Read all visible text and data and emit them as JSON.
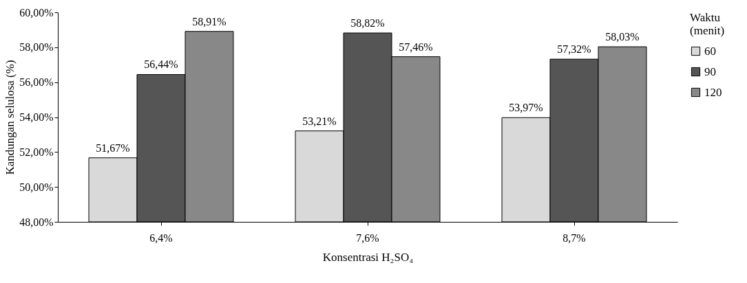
{
  "chart_data": {
    "type": "bar",
    "xlabel": "Konsentrasi H₂SO₄",
    "ylabel": "Kandungan selulosa (%)",
    "legend_title": "Waktu (menit)",
    "categories": [
      "6,4%",
      "7,6%",
      "8,7%"
    ],
    "series": [
      {
        "name": "60",
        "color": "#d9d9d9",
        "values": [
          51.67,
          53.21,
          53.97
        ],
        "value_labels": [
          "51,67%",
          "53,21%",
          "53,97%"
        ]
      },
      {
        "name": "90",
        "color": "#555555",
        "values": [
          56.44,
          58.82,
          57.32
        ],
        "value_labels": [
          "56,44%",
          "58,82%",
          "57,32%"
        ]
      },
      {
        "name": "120",
        "color": "#888888",
        "values": [
          58.91,
          57.46,
          58.03
        ],
        "value_labels": [
          "58,91%",
          "57,46%",
          "58,03%"
        ]
      }
    ],
    "ylim": [
      48,
      60
    ],
    "yticks": [
      {
        "value": 48,
        "label": "48,00%"
      },
      {
        "value": 50,
        "label": "50,00%"
      },
      {
        "value": 52,
        "label": "52,00%"
      },
      {
        "value": 54,
        "label": "54,00%"
      },
      {
        "value": 56,
        "label": "56,00%"
      },
      {
        "value": 58,
        "label": "58,00%"
      },
      {
        "value": 60,
        "label": "60,00%"
      }
    ],
    "grid": false,
    "legend": "right"
  }
}
